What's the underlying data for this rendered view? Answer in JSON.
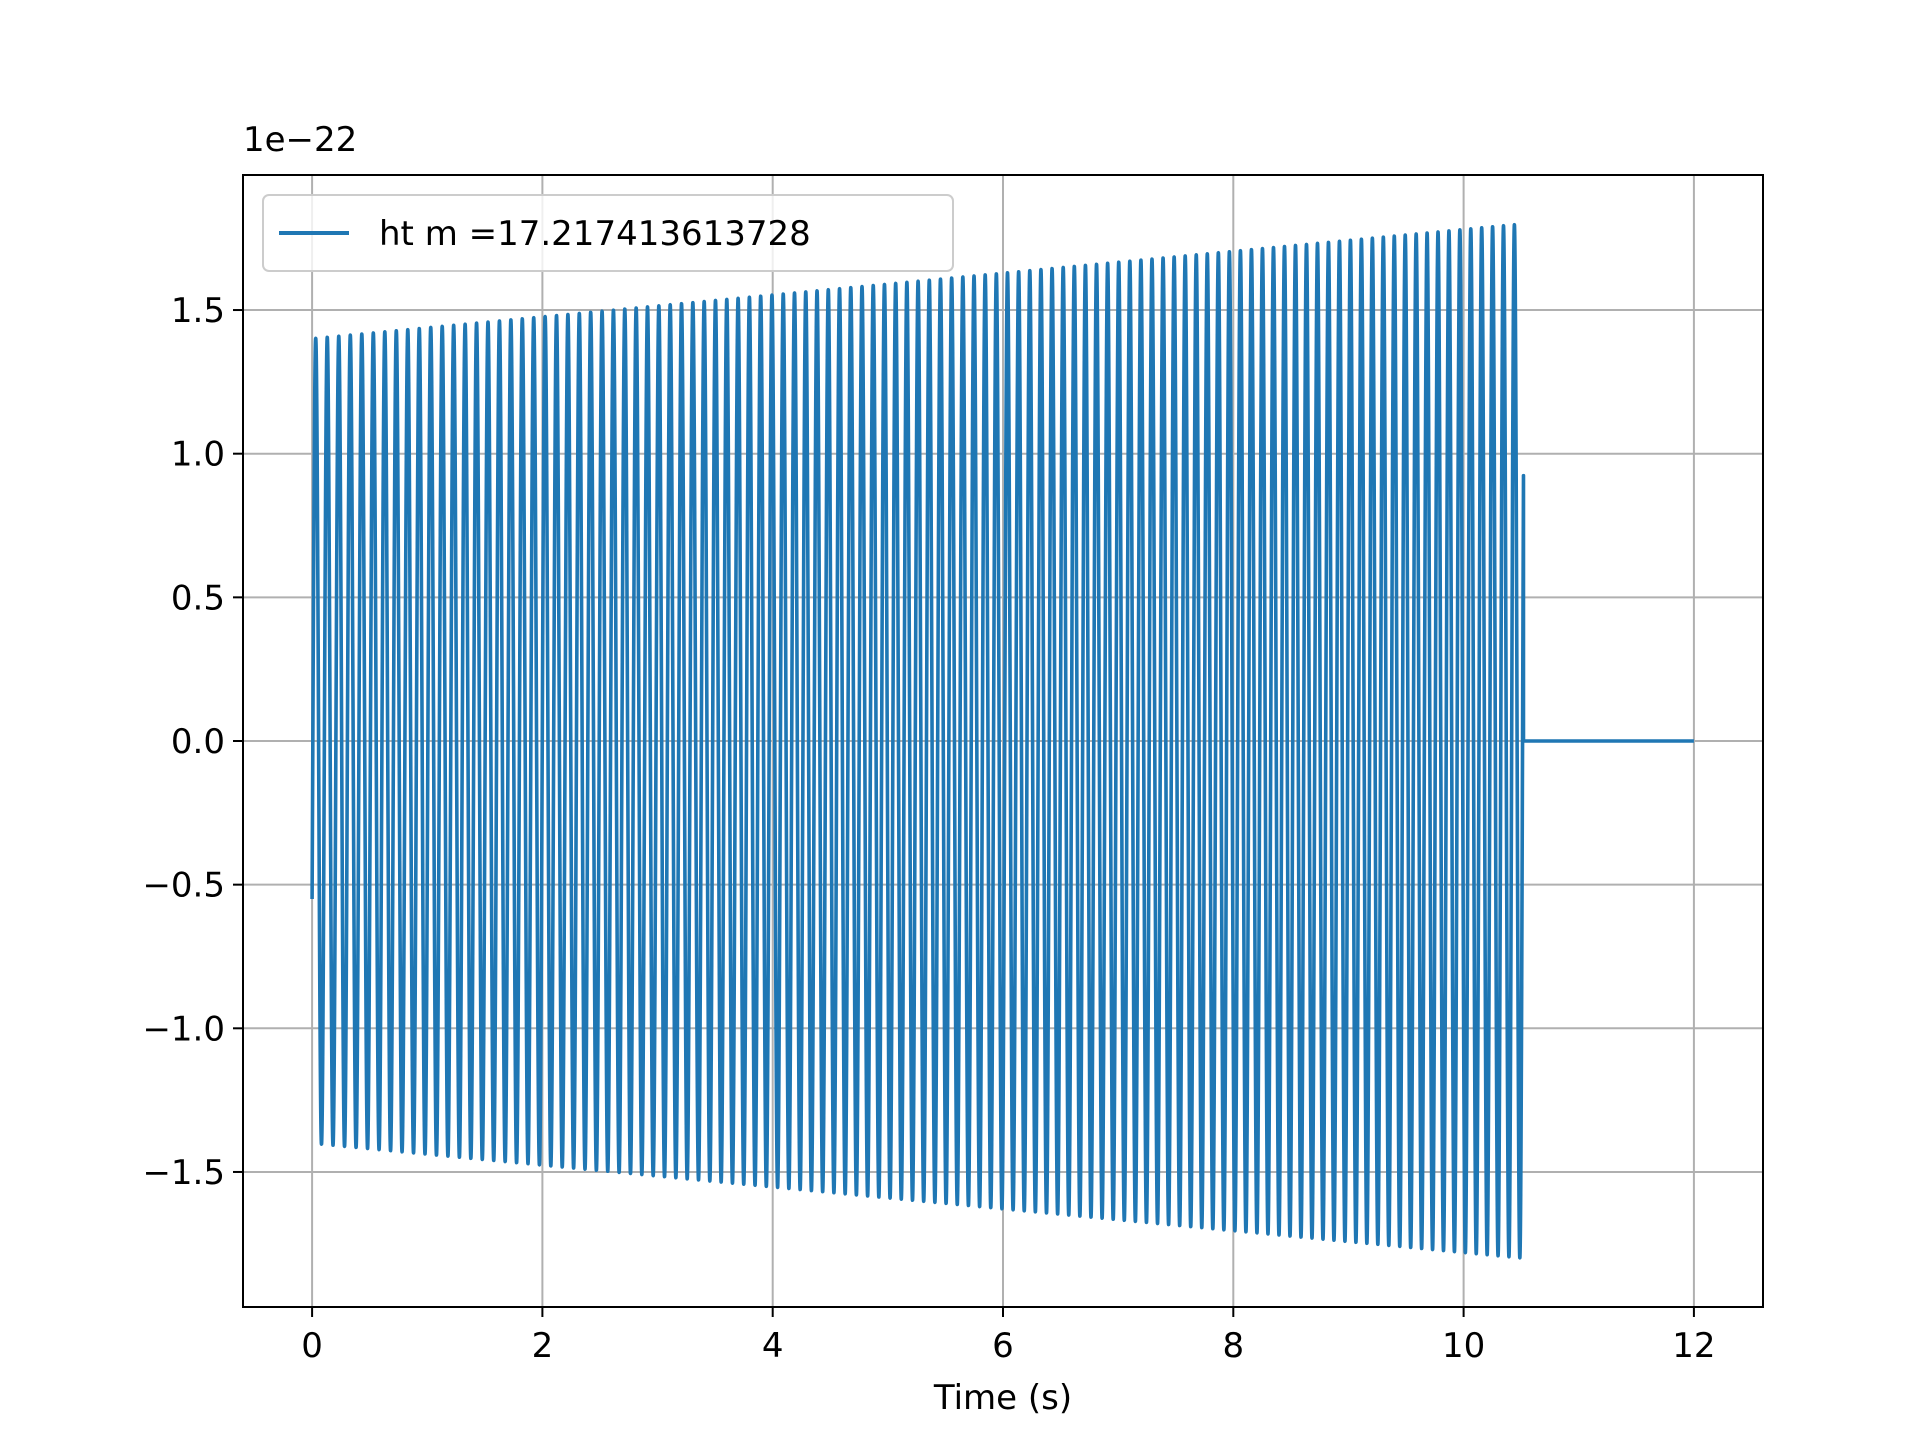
{
  "chart_data": {
    "type": "line",
    "title": "",
    "xlabel": "Time (s)",
    "ylabel": "",
    "y_offset_label": "1e−22",
    "xlim": [
      -0.6,
      12.6
    ],
    "ylim": [
      -1.97,
      1.97
    ],
    "x_ticks": [
      0,
      2,
      4,
      6,
      8,
      10,
      12
    ],
    "x_tick_labels": [
      "0",
      "2",
      "4",
      "6",
      "8",
      "10",
      "12"
    ],
    "y_ticks": [
      -1.5,
      -1.0,
      -0.5,
      0.0,
      0.5,
      1.0,
      1.5
    ],
    "y_tick_labels": [
      "−1.5",
      "−1.0",
      "−0.5",
      "0.0",
      "0.5",
      "1.0",
      "1.5"
    ],
    "grid": true,
    "legend_position": "top-left",
    "series": [
      {
        "name": "ht m =17.217413613728",
        "color": "#1f77b4",
        "signal": {
          "kind": "chirp",
          "t_start": 0.0,
          "t_end": 10.52,
          "t_stop_plot": 12.0,
          "amp_start": 1.4,
          "amp_end": 1.8,
          "approx_cycles": 105,
          "initial_value": -0.55,
          "post_signal_value": 0.0
        }
      }
    ]
  }
}
